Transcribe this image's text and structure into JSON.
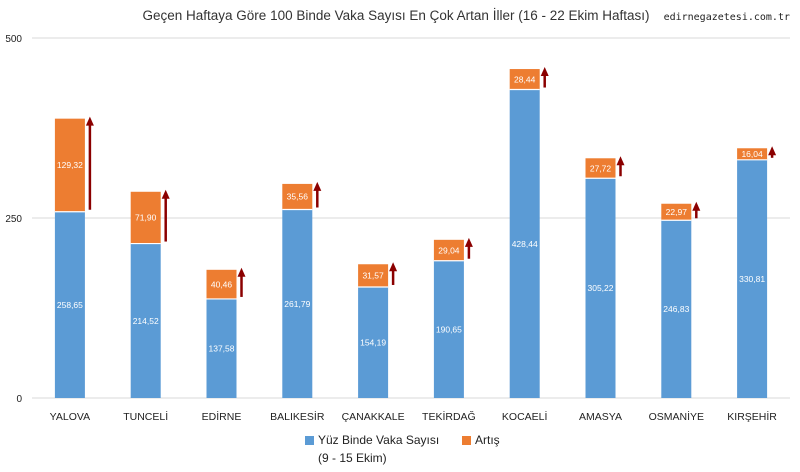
{
  "watermark": "edirnegazetesi.com.tr",
  "chart_data": {
    "type": "bar",
    "stacked": true,
    "title": "Geçen Haftaya Göre 100 Binde Vaka Sayısı En Çok Artan İller (16 - 22 Ekim Haftası)",
    "categories": [
      "YALOVA",
      "TUNCELİ",
      "EDİRNE",
      "BALIKESİR",
      "ÇANAKKALE",
      "TEKİRDAĞ",
      "KOCAELİ",
      "AMASYA",
      "OSMANİYE",
      "KIRŞEHİR"
    ],
    "series": [
      {
        "name": "Yüz Binde Vaka Sayısı (9 - 15 Ekim)",
        "name_lines": [
          "Yüz Binde Vaka Sayısı",
          "(9 - 15 Ekim)"
        ],
        "color": "#5B9BD5",
        "values": [
          258.65,
          214.52,
          137.58,
          261.79,
          154.19,
          190.65,
          428.44,
          305.22,
          246.83,
          330.81
        ],
        "labels": [
          "258,65",
          "214,52",
          "137,58",
          "261,79",
          "154,19",
          "190,65",
          "428,44",
          "305,22",
          "246,83",
          "330,81"
        ]
      },
      {
        "name": "Artış",
        "color": "#ED7D31",
        "values": [
          129.32,
          71.9,
          40.46,
          35.56,
          31.57,
          29.04,
          28.44,
          27.72,
          22.97,
          16.04
        ],
        "labels": [
          "129,32",
          "71,90",
          "40,46",
          "35,56",
          "31,57",
          "29,04",
          "28,44",
          "27,72",
          "22,97",
          "16,04"
        ]
      }
    ],
    "ylim": [
      0,
      500
    ],
    "yticks": [
      0,
      250,
      500
    ],
    "ytick_labels": [
      "0",
      "250",
      "500"
    ],
    "grid": true,
    "legend": "bottom",
    "arrow_color": "#8B0000",
    "xlabel": "",
    "ylabel": ""
  }
}
